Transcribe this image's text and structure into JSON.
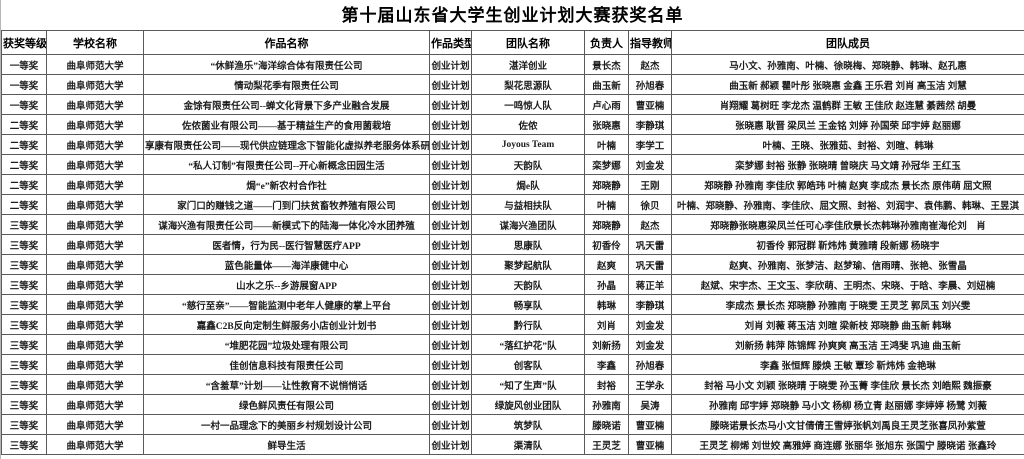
{
  "title": "第十届山东省大学生创业计划大赛获奖名单",
  "table": {
    "headers": [
      "获奖等级",
      "学校名称",
      "作品名称",
      "作品类型",
      "团队名称",
      "负责人",
      "指导教师",
      "团队成员"
    ],
    "rows": [
      {
        "award": "一等奖",
        "school": "曲阜师范大学",
        "work": "“休鲜渔乐”海洋综合体有限责任公司",
        "type": "创业计划",
        "team": "湛洋创业",
        "leader": "景长杰",
        "advisor": "赵杰",
        "members": "马小文、孙雅南、叶楠、徐晓梅、郑晓静、韩琳、赵孔惠"
      },
      {
        "award": "一等奖",
        "school": "曲阜师范大学",
        "work": "情动梨花季有限责任公司",
        "type": "创业计划",
        "team": "梨花思源队",
        "leader": "曲玉新",
        "advisor": "孙旭春",
        "members": "曲玉新 郝颖 瞿叶彤 张晓惠 金鑫 王乐君 刘肖 高玉洁 刘慧"
      },
      {
        "award": "一等奖",
        "school": "曲阜师范大学",
        "work": "金馀有限责任公司--蝉文化背景下多产业融合发展",
        "type": "创业计划",
        "team": "一鸣惊人队",
        "leader": "卢心雨",
        "advisor": "曹亚楠",
        "members": "肖翔耀 葛树旺 李龙杰 温鹤群 王敏 王佳欣 赵连慧 綦茜然 胡曼"
      },
      {
        "award": "二等奖",
        "school": "曲阜师范大学",
        "work": "佐侬菌业有限公司——基于精益生产的食用菌栽培",
        "type": "创业计划",
        "team": "佐侬",
        "leader": "张晓惠",
        "advisor": "李静琪",
        "members": "张晓惠 耿晋 梁凤兰 王金铭 刘婷 孙国荣 邱宇婷 赵丽娜"
      },
      {
        "award": "二等奖",
        "school": "曲阜师范大学",
        "work": "享康有限责任公司——现代供应链理念下智能化虚拟养老服务体系研究",
        "type": "创业计划",
        "team": "Joyous Team",
        "leader": "叶楠",
        "advisor": "李学工",
        "members": "叶楠、王晓、张雅茹、封裕、刘暄、韩琳"
      },
      {
        "award": "二等奖",
        "school": "曲阜师范大学",
        "work": "“私人订制”有限责任公司--开心新概念田园生活",
        "type": "创业计划",
        "team": "天韵队",
        "leader": "栾梦娜",
        "advisor": "刘金发",
        "members": "栾梦娜 封裕 张静 张晓晴 曾晓庆 马文靖 孙冠华 王红玉"
      },
      {
        "award": "二等奖",
        "school": "曲阜师范大学",
        "work": "焗“e”新农村合作社",
        "type": "创业计划",
        "team": "焗e队",
        "leader": "郑晓静",
        "advisor": "王刚",
        "members": "郑晓静 孙雅南 李佳欣 郭皓玮 叶楠 赵爽 李成杰 景长杰 原伟萌 屈文照"
      },
      {
        "award": "二等奖",
        "school": "曲阜师范大学",
        "work": "家门口的赚钱之道——门到门扶贫畜牧养殖有限公司",
        "type": "创业计划",
        "team": "与益相扶队",
        "leader": "叶楠",
        "advisor": "徐贝",
        "members": "叶楠、郑晓静、孙雅南、李佳欣、屈文照、封裕、刘润宇、袁伟鹏、韩琳、王昱淇"
      },
      {
        "award": "三等奖",
        "school": "曲阜师范大学",
        "work": "谋海兴渔有限责任公司——新模式下的陆海一体化冷水团养殖",
        "type": "创业计划",
        "team": "谋海兴渔团队",
        "leader": "郑晓静",
        "advisor": "赵杰",
        "members": "郑晓静张晓惠梁凤兰任可心李佳欣景长杰韩琳孙雅南崔海伦刘　肖"
      },
      {
        "award": "三等奖",
        "school": "曲阜师范大学",
        "work": "医者情，行为民--医行智慧医疗APP",
        "type": "创业计划",
        "team": "思康队",
        "leader": "初香伶",
        "advisor": "巩天雷",
        "members": "初香伶 郭冠群 靳炜炜 黄雅晴 段新娜 杨晓宇"
      },
      {
        "award": "三等奖",
        "school": "曲阜师范大学",
        "work": "蓝色能量体——海洋康健中心",
        "type": "创业计划",
        "team": "聚梦起航队",
        "leader": "赵爽",
        "advisor": "巩天雷",
        "members": "赵爽、孙雅南、张梦洁、赵梦瑜、信雨晴、张艳、张雪晶"
      },
      {
        "award": "三等奖",
        "school": "曲阜师范大学",
        "work": "山水之乐--乡游展窗APP",
        "type": "创业计划",
        "team": "天韵队",
        "leader": "孙晶",
        "advisor": "蒋正羊",
        "members": "赵斌、宋宇杰、王文玉、李欣萌、王明杰、宋晓、于晗、李晨、刘妞楠"
      },
      {
        "award": "三等奖",
        "school": "曲阜师范大学",
        "work": "“慈行至亲”——智能监测中老年人健康的掌上平台",
        "type": "创业计划",
        "team": "畅享队",
        "leader": "韩琳",
        "advisor": "李静琪",
        "members": "李成杰 景长杰 郑晓静 孙雅南 于晓雯 王灵芝 郭凤玉 刘兴雯"
      },
      {
        "award": "三等奖",
        "school": "曲阜师范大学",
        "work": "嘉鑫C2B反向定制生鲜服务小店创业计划书",
        "type": "创业计划",
        "team": "黔行队",
        "leader": "刘肖",
        "advisor": "刘金发",
        "members": "刘肖 刘薇 蒋玉洁 刘暄 梁新枝 郑晓静 曲玉新 韩琳"
      },
      {
        "award": "三等奖",
        "school": "曲阜师范大学",
        "work": "“堆肥花园”垃圾处理有限公司",
        "type": "创业计划",
        "team": "“落红护花”队",
        "leader": "刘新扬",
        "advisor": "刘金发",
        "members": "刘新扬 韩萍 陈锦辉 孙爽爽 高玉洁 王鸿斐 巩迪 曲玉新"
      },
      {
        "award": "三等奖",
        "school": "曲阜师范大学",
        "work": "佳创信息科技有限责任公司",
        "type": "创业计划",
        "team": "创客队",
        "leader": "李鑫",
        "advisor": "孙旭春",
        "members": "李鑫 张恒辉 滕焕 王敏 覃珍 靳炜炜 金艳琳"
      },
      {
        "award": "三等奖",
        "school": "曲阜师范大学",
        "work": "“含羞草”计划——让性教育不说悄悄话",
        "type": "创业计划",
        "team": "“知了生声”队",
        "leader": "封裕",
        "advisor": "王学永",
        "members": "封裕 马小文 刘颖 张晓晴 于晓雯 孙玉菁 李佳欣 景长杰 刘皓熙 魏振豪"
      },
      {
        "award": "三等奖",
        "school": "曲阜师范大学",
        "work": "绿色鲜风责任有限公司",
        "type": "创业计划",
        "team": "绿旋风创业团队",
        "leader": "孙雅南",
        "advisor": "吴涛",
        "members": "孙雅南 邱宇婷 郑晓静 马小文 杨柳 杨立青 赵丽娜 李婷婷 杨鹭 刘薇"
      },
      {
        "award": "三等奖",
        "school": "曲阜师范大学",
        "work": "一村一品理念下的美丽乡村规划设计公司",
        "type": "创业计划",
        "team": "筑梦队",
        "leader": "滕晓诺",
        "advisor": "曹亚楠",
        "members": "滕晓诺景长杰马小文甘倩倩王雪婷张帆刘禹良王灵芝张喜凤孙紫萱"
      },
      {
        "award": "三等奖",
        "school": "曲阜师范大学",
        "work": "鲜导生活",
        "type": "创业计划",
        "team": "渠清队",
        "leader": "王灵芝",
        "advisor": "曹亚楠",
        "members": "王灵芝 柳烯 刘世姣 高雅婷 商连娜 张丽华 张旭东 张国宁 滕晓诺 张鑫玲"
      }
    ]
  }
}
